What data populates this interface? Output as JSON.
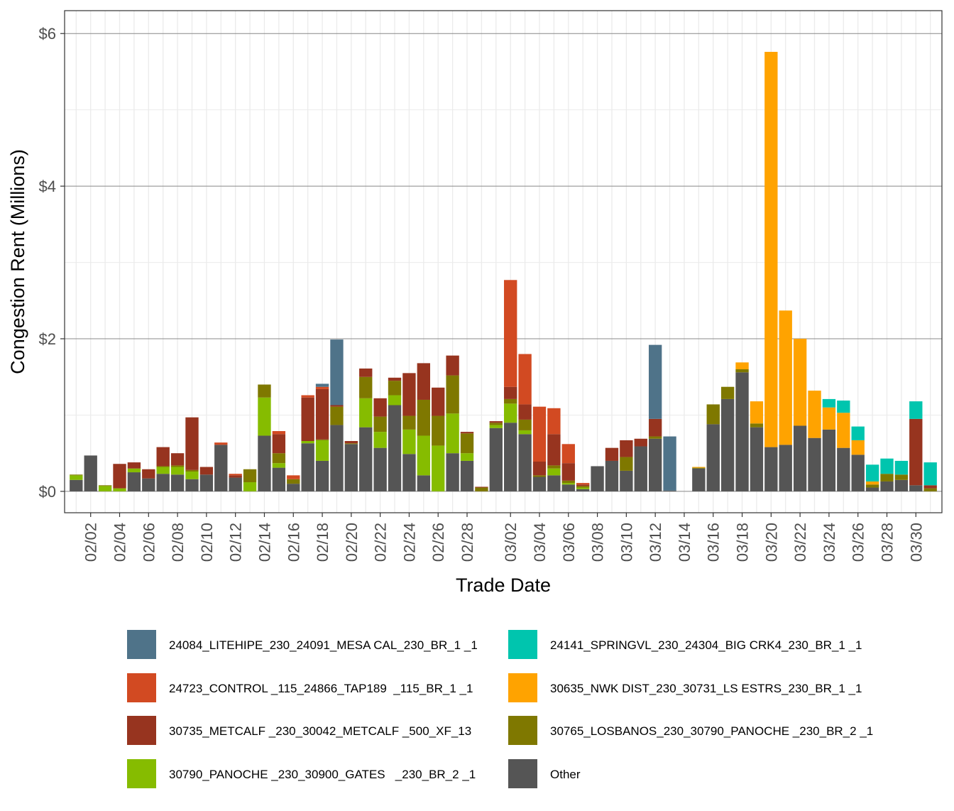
{
  "chart_data": {
    "type": "bar",
    "stacked": true,
    "xlabel": "Trade Date",
    "ylabel": "Congestion Rent (Millions)",
    "ylim": [
      -0.28,
      6.3
    ],
    "y_ticks": [
      0,
      2,
      4,
      6
    ],
    "y_tick_labels": [
      "$0",
      "$2",
      "$4",
      "$6"
    ],
    "grid": true,
    "legend_position": "bottom",
    "categories": [
      "02/01",
      "02/02",
      "02/03",
      "02/04",
      "02/05",
      "02/06",
      "02/07",
      "02/08",
      "02/09",
      "02/10",
      "02/11",
      "02/12",
      "02/13",
      "02/14",
      "02/15",
      "02/16",
      "02/17",
      "02/18",
      "02/19",
      "02/20",
      "02/21",
      "02/22",
      "02/23",
      "02/24",
      "02/25",
      "02/26",
      "02/27",
      "02/28",
      "02/29",
      "03/01",
      "03/02",
      "03/03",
      "03/04",
      "03/05",
      "03/06",
      "03/07",
      "03/08",
      "03/09",
      "03/10",
      "03/11",
      "03/12",
      "03/13",
      "03/14",
      "03/15",
      "03/16",
      "03/17",
      "03/18",
      "03/19",
      "03/20",
      "03/21",
      "03/22",
      "03/23",
      "03/24",
      "03/25",
      "03/26",
      "03/27",
      "03/28",
      "03/29",
      "03/30",
      "03/31"
    ],
    "x_tick_labels": [
      "02/02",
      "02/04",
      "02/06",
      "02/08",
      "02/10",
      "02/12",
      "02/14",
      "02/16",
      "02/18",
      "02/20",
      "02/22",
      "02/24",
      "02/26",
      "02/28",
      "03/02",
      "03/04",
      "03/06",
      "03/08",
      "03/10",
      "03/12",
      "03/14",
      "03/16",
      "03/18",
      "03/20",
      "03/22",
      "03/24",
      "03/26",
      "03/28",
      "03/30"
    ],
    "series": [
      {
        "name": "Other",
        "color": "#555555",
        "values": [
          0.15,
          0.47,
          0,
          0,
          0.25,
          0.17,
          0.23,
          0.22,
          0.16,
          0.22,
          0.61,
          0.18,
          0,
          0.73,
          0.31,
          0.1,
          0.63,
          0.4,
          0.87,
          0.62,
          0.84,
          0.57,
          1.13,
          0.49,
          0.21,
          0,
          0.5,
          0.4,
          0,
          0.83,
          0.9,
          0.75,
          0.19,
          0.21,
          0.09,
          0.03,
          0.33,
          0.4,
          0.27,
          0.59,
          0.69,
          0.01,
          0,
          0.3,
          0.88,
          1.21,
          1.56,
          0.84,
          0.58,
          0.61,
          0.86,
          0.7,
          0.81,
          0.57,
          0.48,
          0.05,
          0.13,
          0.15,
          0.08,
          0
        ]
      },
      {
        "name": "30790_PANOCHE _230_30900_GATES   _230_BR_2 _1",
        "color": "#86bc00",
        "values": [
          0.06,
          0,
          0.07,
          0.04,
          0.05,
          0,
          0.09,
          0.1,
          0.1,
          0,
          0,
          0,
          0.12,
          0.5,
          0.06,
          0,
          0.03,
          0.27,
          0,
          0,
          0.38,
          0.21,
          0.13,
          0.32,
          0.52,
          0.6,
          0.52,
          0.1,
          0,
          0.04,
          0.25,
          0.05,
          0,
          0.09,
          0.02,
          0.02,
          0,
          0,
          0,
          0,
          0,
          0,
          0,
          0,
          0,
          0,
          0,
          0,
          0,
          0,
          0,
          0,
          0,
          0,
          0,
          0,
          0,
          0,
          0,
          0
        ]
      },
      {
        "name": "30765_LOSBANOS_230_30790_PANOCHE _230_BR_2 _1",
        "color": "#7f7800",
        "values": [
          0.01,
          0,
          0.01,
          0,
          0,
          0,
          0.01,
          0.02,
          0.02,
          0,
          0,
          0,
          0.17,
          0.17,
          0.13,
          0.06,
          0,
          0.01,
          0.24,
          0.01,
          0.28,
          0.2,
          0.19,
          0.18,
          0.47,
          0.39,
          0.5,
          0.26,
          0.05,
          0.03,
          0.06,
          0.14,
          0.02,
          0.04,
          0.03,
          0.02,
          0,
          0,
          0.18,
          0,
          0.03,
          0,
          0,
          0.01,
          0.26,
          0.16,
          0.04,
          0.05,
          0,
          0,
          0,
          0,
          0,
          0,
          0,
          0.04,
          0.1,
          0.07,
          0,
          0.04
        ]
      },
      {
        "name": "30735_METCALF _230_30042_METCALF _500_XF_13",
        "color": "#97341f",
        "values": [
          0,
          0,
          0,
          0.32,
          0.08,
          0.12,
          0.25,
          0.16,
          0.69,
          0.1,
          0,
          0.03,
          0,
          0,
          0.25,
          0,
          0.57,
          0.66,
          0.02,
          0.03,
          0.11,
          0.24,
          0.04,
          0.56,
          0.48,
          0.37,
          0.26,
          0.02,
          0.01,
          0.02,
          0.16,
          0.2,
          0.18,
          0.41,
          0.23,
          0.02,
          0,
          0.17,
          0.22,
          0.1,
          0.23,
          0,
          0,
          0,
          0,
          0,
          0,
          0,
          0,
          0,
          0,
          0,
          0,
          0,
          0,
          0,
          0,
          0,
          0.87,
          0.04
        ]
      },
      {
        "name": "24723_CONTROL _115_24866_TAP189  _115_BR_1 _1",
        "color": "#d24a22",
        "values": [
          0,
          0,
          0,
          0,
          0,
          0,
          0,
          0,
          0,
          0,
          0.03,
          0.02,
          0,
          0,
          0.04,
          0.05,
          0.03,
          0.03,
          0,
          0,
          0,
          0,
          0,
          0,
          0,
          0,
          0,
          0,
          0,
          0,
          1.4,
          0.66,
          0.72,
          0.34,
          0.25,
          0.02,
          0,
          0,
          0,
          0,
          0,
          0,
          0,
          0,
          0,
          0,
          0,
          0,
          0,
          0,
          0,
          0,
          0,
          0,
          0,
          0,
          0,
          0,
          0,
          0
        ]
      },
      {
        "name": "24084_LITEHIPE_230_24091_MESA CAL_230_BR_1 _1",
        "color": "#4f7389",
        "values": [
          0,
          0,
          0,
          0,
          0,
          0,
          0,
          0,
          0,
          0,
          0,
          0,
          0,
          0,
          0,
          0,
          0,
          0.04,
          0.86,
          0,
          0,
          0,
          0,
          0,
          0,
          0,
          0,
          0,
          0,
          0,
          0,
          0,
          0,
          0,
          0,
          0,
          0,
          0,
          0,
          0,
          0.97,
          0.71,
          0,
          0,
          0,
          0,
          0,
          0,
          0,
          0,
          0,
          0,
          0,
          0,
          0,
          0,
          0,
          0,
          0,
          0
        ]
      },
      {
        "name": "30635_NWK DIST_230_30731_LS ESTRS_230_BR_1 _1",
        "color": "#ffa300",
        "values": [
          0,
          0,
          0,
          0,
          0,
          0,
          0,
          0,
          0,
          0,
          0,
          0,
          0,
          0,
          0,
          0,
          0,
          0,
          0,
          0,
          0,
          0,
          0,
          0,
          0,
          0,
          0,
          0,
          0,
          0,
          0,
          0,
          0,
          0,
          0,
          0,
          0,
          0,
          0,
          0,
          0,
          0,
          0,
          0.01,
          0,
          0,
          0.09,
          0.29,
          5.18,
          1.76,
          1.14,
          0.62,
          0.29,
          0.46,
          0.19,
          0.04,
          0,
          0,
          0,
          0
        ]
      },
      {
        "name": "24141_SPRINGVL_230_24304_BIG CRK4_230_BR_1 _1",
        "color": "#00c5ae",
        "values": [
          0,
          0,
          0,
          0,
          0,
          0,
          0,
          0,
          0,
          0,
          0,
          0,
          0,
          0,
          0,
          0,
          0,
          0,
          0,
          0,
          0,
          0,
          0,
          0,
          0,
          0,
          0,
          0,
          0,
          0,
          0,
          0,
          0,
          0,
          0,
          0,
          0,
          0,
          0,
          0,
          0,
          0,
          0,
          0,
          0,
          0,
          0,
          0,
          0,
          0,
          0,
          0,
          0.11,
          0.16,
          0.18,
          0.22,
          0.2,
          0.18,
          0.23,
          0.3
        ]
      }
    ]
  },
  "legend": {
    "items": [
      {
        "label": "24084_LITEHIPE_230_24091_MESA CAL_230_BR_1 _1",
        "color": "#4f7389"
      },
      {
        "label": "24141_SPRINGVL_230_24304_BIG CRK4_230_BR_1 _1",
        "color": "#00c5ae"
      },
      {
        "label": "24723_CONTROL _115_24866_TAP189  _115_BR_1 _1",
        "color": "#d24a22"
      },
      {
        "label": "30635_NWK DIST_230_30731_LS ESTRS_230_BR_1 _1",
        "color": "#ffa300"
      },
      {
        "label": "30735_METCALF _230_30042_METCALF _500_XF_13",
        "color": "#97341f"
      },
      {
        "label": "30765_LOSBANOS_230_30790_PANOCHE _230_BR_2 _1",
        "color": "#7f7800"
      },
      {
        "label": "30790_PANOCHE _230_30900_GATES   _230_BR_2 _1",
        "color": "#86bc00"
      },
      {
        "label": "Other",
        "color": "#555555"
      }
    ]
  }
}
